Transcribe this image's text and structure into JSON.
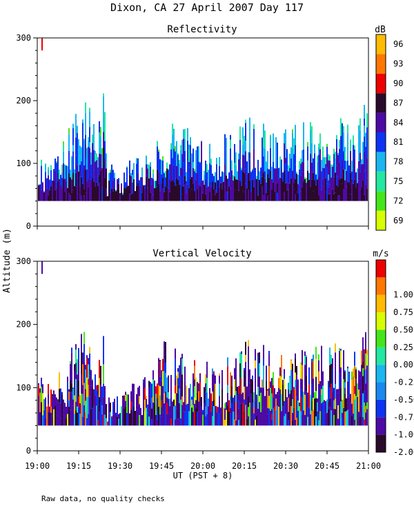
{
  "title": "Dixon, CA 27 April 2007  Day 117",
  "shared_ylabel": "Altitude (m)",
  "xlabel": "UT  (PST + 8)",
  "footnote": "Raw data, no quality checks",
  "x_ticks": [
    "19:00",
    "19:15",
    "19:30",
    "19:45",
    "20:00",
    "20:15",
    "20:30",
    "20:45",
    "21:00"
  ],
  "chart_data": [
    {
      "type": "heatmap",
      "title": "Reflectivity",
      "unit_label": "dB",
      "xlim": [
        "19:00",
        "21:00"
      ],
      "ylim": [
        0,
        300
      ],
      "y_ticks": [
        "0",
        "100",
        "200",
        "300"
      ],
      "color_bins": [
        {
          "label": "69",
          "color": "#d7ff00"
        },
        {
          "label": "72",
          "color": "#44e61b"
        },
        {
          "label": "75",
          "color": "#22e8a2"
        },
        {
          "label": "78",
          "color": "#1ab6f0"
        },
        {
          "label": "81",
          "color": "#0d33f2"
        },
        {
          "label": "84",
          "color": "#4d0aa5"
        },
        {
          "label": "87",
          "color": "#2a0a2a"
        },
        {
          "label": "90",
          "color": "#ee0000"
        },
        {
          "label": "93",
          "color": "#ff7700"
        },
        {
          "label": "96",
          "color": "#ffbb00"
        }
      ],
      "base_altitude_m": 40,
      "top_altitude_profile": {
        "times": [
          "19:00",
          "19:05",
          "19:10",
          "19:15",
          "19:18",
          "19:20",
          "19:24",
          "19:25",
          "19:30",
          "19:40",
          "19:45",
          "19:50",
          "20:00",
          "20:10",
          "20:15",
          "20:20",
          "20:30",
          "20:40",
          "20:45",
          "20:50",
          "20:55",
          "20:58"
        ],
        "altitude_m": [
          130,
          100,
          150,
          190,
          220,
          160,
          220,
          100,
          100,
          120,
          180,
          170,
          140,
          150,
          180,
          170,
          160,
          170,
          170,
          180,
          160,
          220
        ]
      },
      "isolated_echo": {
        "time": "19:01",
        "altitude_m": [
          280,
          300
        ],
        "label": "90"
      }
    },
    {
      "type": "heatmap",
      "title": "Vertical Velocity",
      "unit_label": "m/s",
      "xlim": [
        "19:00",
        "21:00"
      ],
      "ylim": [
        0,
        300
      ],
      "y_ticks": [
        "0",
        "100",
        "200",
        "300"
      ],
      "color_bins": [
        {
          "label": "-2.00",
          "color": "#2a0a2a"
        },
        {
          "label": "-1.00",
          "color": "#4d0aa5"
        },
        {
          "label": "-0.75",
          "color": "#0d33f2"
        },
        {
          "label": "-0.50",
          "color": "#1a88f0"
        },
        {
          "label": "-0.25",
          "color": "#1ab6f0"
        },
        {
          "label": "0.00",
          "color": "#22e8a2"
        },
        {
          "label": "0.25",
          "color": "#44e61b"
        },
        {
          "label": "0.50",
          "color": "#d7ff00"
        },
        {
          "label": "0.75",
          "color": "#ffbb00"
        },
        {
          "label": "1.00",
          "color": "#ff7700"
        },
        {
          "label": "",
          "color": "#ee0000"
        }
      ],
      "base_altitude_m": 40,
      "isolated_echo": {
        "time": "19:01",
        "altitude_m": [
          280,
          300
        ],
        "label": "-1.00"
      }
    }
  ]
}
